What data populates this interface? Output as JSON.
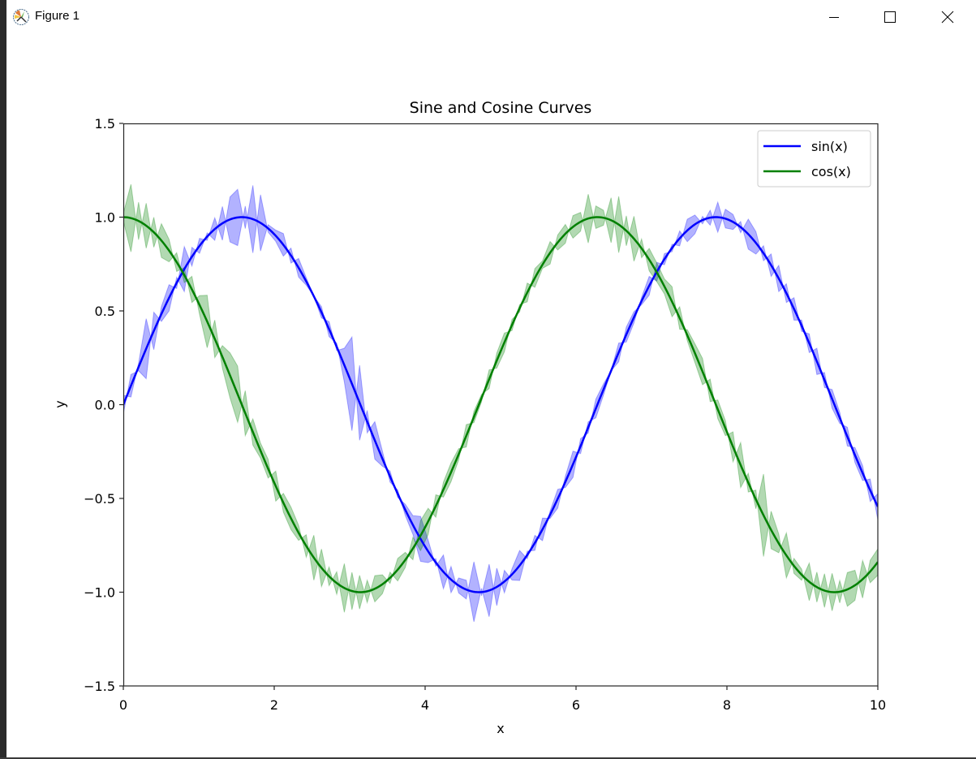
{
  "window": {
    "title": "Figure 1",
    "controls": {
      "minimize": "minimize-icon",
      "maximize": "maximize-icon",
      "close": "close-icon"
    }
  },
  "colors": {
    "sin": "#0000ff",
    "cos": "#008000",
    "sin_fill": "#0000ff",
    "cos_fill": "#008000",
    "fill_opacity": 0.3
  },
  "chart_data": {
    "type": "line",
    "title": "Sine and Cosine Curves",
    "xlabel": "x",
    "ylabel": "y",
    "xlim": [
      0,
      10
    ],
    "ylim": [
      -1.5,
      1.5
    ],
    "xticks": [
      0,
      2,
      4,
      6,
      8,
      10
    ],
    "xtick_labels": [
      "0",
      "2",
      "4",
      "6",
      "8",
      "10"
    ],
    "yticks": [
      1.5,
      1.0,
      0.5,
      0.0,
      -0.5,
      -1.0,
      -1.5
    ],
    "ytick_labels": [
      "1.5",
      "1.0",
      "0.5",
      "0.0",
      "−0.5",
      "−1.0",
      "−1.5"
    ],
    "grid": false,
    "legend_position": "upper right",
    "n_points": 100,
    "series": [
      {
        "name": "sin(x)",
        "function": "sin",
        "color": "#0000ff",
        "band": "y ± noise",
        "noise": [
          0.05,
          -0.06,
          0.02,
          0.16,
          -0.1,
          0.04,
          0.07,
          -0.03,
          0.12,
          -0.05,
          0.04,
          -0.02,
          0.06,
          -0.09,
          0.12,
          0.15,
          -0.06,
          0.18,
          -0.15,
          0.02,
          0.03,
          0.06,
          -0.04,
          0.05,
          0.02,
          0.0,
          -0.03,
          0.04,
          -0.02,
          0.09,
          0.25,
          -0.2,
          0.06,
          -0.1,
          -0.04,
          0.03,
          -0.02,
          0.03,
          0.05,
          0.12,
          0.06,
          -0.02,
          0.09,
          -0.07,
          0.04,
          0.05,
          -0.16,
          0.02,
          -0.14,
          0.1,
          -0.06,
          0.03,
          0.08,
          -0.02,
          0.04,
          -0.06,
          0.02,
          0.05,
          -0.03,
          -0.07,
          0.04,
          -0.03,
          0.05,
          0.03,
          0.0,
          -0.05,
          0.04,
          0.03,
          -0.02,
          -0.05,
          0.05,
          -0.03,
          0.02,
          -0.04,
          0.06,
          0.05,
          -0.02,
          0.04,
          -0.08,
          0.05,
          0.04,
          -0.03,
          0.08,
          0.06,
          -0.04,
          0.06,
          -0.07,
          0.05,
          -0.06,
          0.03,
          -0.05,
          0.07,
          -0.04,
          0.05,
          0.03,
          -0.05,
          0.04,
          0.04,
          -0.06,
          0.07
        ]
      },
      {
        "name": "cos(x)",
        "function": "cos",
        "color": "#008000",
        "band": "y ± noise",
        "noise": [
          0.02,
          0.18,
          -0.1,
          0.12,
          -0.08,
          0.09,
          0.06,
          -0.05,
          0.04,
          -0.07,
          0.05,
          0.14,
          -0.1,
          0.06,
          0.12,
          0.15,
          -0.12,
          0.07,
          0.04,
          0.05,
          -0.08,
          0.05,
          0.06,
          0.04,
          -0.06,
          0.12,
          -0.1,
          0.05,
          -0.06,
          0.13,
          -0.1,
          0.09,
          -0.06,
          0.07,
          0.05,
          -0.03,
          0.06,
          0.04,
          -0.06,
          0.08,
          0.07,
          -0.06,
          0.04,
          0.05,
          0.03,
          -0.06,
          0.03,
          0.02,
          -0.05,
          0.04,
          0.05,
          -0.03,
          0.02,
          -0.05,
          0.05,
          0.02,
          0.06,
          -0.04,
          -0.05,
          0.06,
          0.05,
          -0.13,
          0.06,
          0.04,
          -0.12,
          0.15,
          -0.08,
          0.12,
          -0.05,
          0.06,
          0.05,
          0.04,
          0.08,
          -0.06,
          0.03,
          0.05,
          0.07,
          -0.06,
          0.05,
          0.04,
          -0.08,
          0.12,
          -0.05,
          0.05,
          -0.22,
          0.1,
          0.05,
          -0.12,
          0.04,
          0.03,
          -0.1,
          0.08,
          -0.09,
          0.1,
          -0.06,
          0.09,
          0.08,
          -0.1,
          0.06,
          0.07
        ]
      }
    ]
  },
  "legend": {
    "items": [
      {
        "label": "sin(x)",
        "color": "#0000ff"
      },
      {
        "label": "cos(x)",
        "color": "#008000"
      }
    ]
  }
}
